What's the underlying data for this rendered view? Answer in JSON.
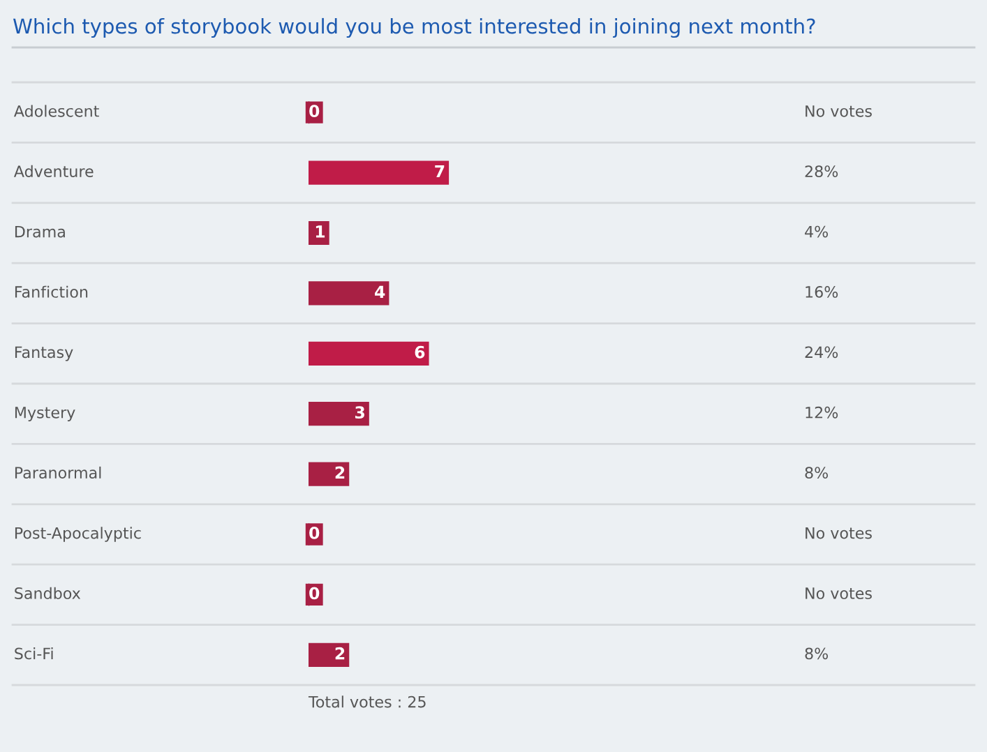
{
  "chart_data": {
    "type": "bar",
    "orientation": "horizontal",
    "title": "Which types of storybook would you be most interested in joining next month?",
    "categories": [
      "Adolescent",
      "Adventure",
      "Drama",
      "Fanfiction",
      "Fantasy",
      "Mystery",
      "Paranormal",
      "Post-Apocalyptic",
      "Sandbox",
      "Sci-Fi"
    ],
    "values": [
      0,
      7,
      1,
      4,
      6,
      3,
      2,
      0,
      0,
      2
    ],
    "colors": [
      "#a82044",
      "#c01c48",
      "#a82044",
      "#a82044",
      "#c01c48",
      "#a82044",
      "#a82044",
      "#a82044",
      "#a82044",
      "#a82044"
    ],
    "data_labels": true,
    "annotations": [
      "No votes",
      "28%",
      "4%",
      "16%",
      "24%",
      "12%",
      "8%",
      "No votes",
      "No votes",
      "8%",
      "Total votes : 25"
    ]
  }
}
